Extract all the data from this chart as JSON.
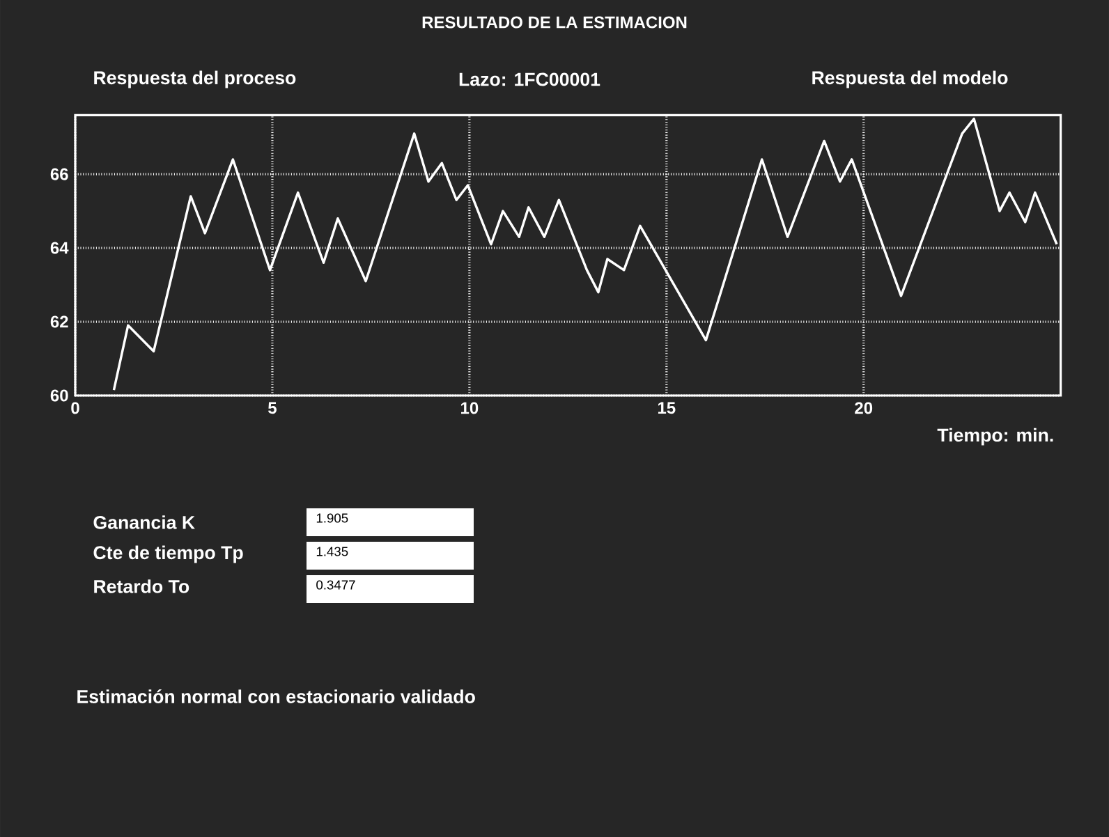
{
  "chart_data": {
    "type": "line",
    "title": "RESULTADO DE LA ESTIMACION",
    "xlabel": "Tiempo: min.",
    "x": [
      0.98,
      1.34,
      1.99,
      2.93,
      3.29,
      4.0,
      4.94,
      5.65,
      6.3,
      6.66,
      7.37,
      8.6,
      8.96,
      9.3,
      9.67,
      9.96,
      10.55,
      10.85,
      11.26,
      11.5,
      11.9,
      12.27,
      12.98,
      13.27,
      13.5,
      13.92,
      14.33,
      16.0,
      17.42,
      18.07,
      19.0,
      19.4,
      19.7,
      20.95,
      22.5,
      22.8,
      23.45,
      23.7,
      24.1,
      24.35,
      24.9
    ],
    "values": [
      60.15,
      61.9,
      61.2,
      65.4,
      64.4,
      66.4,
      63.4,
      65.5,
      63.6,
      64.8,
      63.1,
      67.1,
      65.8,
      66.3,
      65.3,
      65.7,
      64.1,
      65.0,
      64.3,
      65.1,
      64.3,
      65.3,
      63.4,
      62.8,
      63.7,
      63.4,
      64.6,
      61.5,
      66.4,
      64.3,
      66.9,
      65.8,
      66.4,
      62.7,
      67.1,
      67.5,
      65.0,
      65.5,
      64.7,
      65.5,
      64.1
    ],
    "color": "#ffffff",
    "xlim": [
      0,
      25
    ],
    "ylim": [
      60,
      67.6
    ],
    "xticks": [
      0,
      5,
      10,
      15,
      20
    ],
    "yticks": [
      60,
      62,
      64,
      66
    ],
    "grid": true,
    "marker": "none",
    "line_style": "solid",
    "annotations": [
      "Respuesta del proceso",
      "Lazo: 1FC00001",
      "Respuesta del modelo",
      "Ganancia K",
      "1.905",
      "Cte de tiempo Tp",
      "1.435",
      "Retardo To",
      "0.3477",
      "Estimación normal con estacionario validado"
    ]
  }
}
